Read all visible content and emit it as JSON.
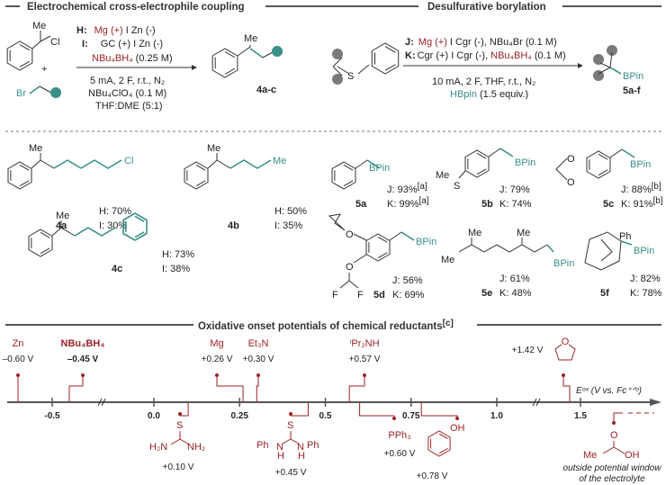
{
  "headers": {
    "coupling": "Electrochemical cross-electrophile coupling",
    "borylation": "Desulfurative borylation",
    "potentials": "Oxidative onset potentials of chemical reductants",
    "potentials_note": "[c]"
  },
  "coupling": {
    "substrate_me": "Me",
    "substrate_cl": "Cl",
    "plus": "+",
    "substrate_br": "Br",
    "cond_H_label": "H:",
    "cond_H_red": "Mg (+)",
    "cond_H_rest": "I Zn (-)",
    "cond_I_label": "I:",
    "cond_I_rest": "GC (+) I Zn (-)",
    "cond_additive": "NBu₄BH₄",
    "cond_additive_conc": "(0.25 M)",
    "cond_line1": "5 mA,  2 F, r.t., N₂",
    "cond_line2": "NBu₄ClO₄ (0.1 M)",
    "cond_line3": "THF:DME (5:1)",
    "product_me": "Me",
    "product_label": "4a-c"
  },
  "borylation": {
    "substrate_s": "S",
    "cond_J_label": "J:",
    "cond_J_red": "Mg (+)",
    "cond_J_rest": "I Cgr (-), NBu₄Br (0.1 M)",
    "cond_K_label": "K:",
    "cond_K_rest": "Cgr (+) I Cgr (-),",
    "cond_K_red": "NBu₄BH₄",
    "cond_K_conc": "(0.1 M)",
    "cond_line1": "10 mA, 2 F, THF, r.t., N₂",
    "cond_hbpin": "HBpin",
    "cond_hbpin_rest": "(1.5 equiv.)",
    "product_bpin": "BPin",
    "product_label": "5a-f"
  },
  "products": [
    {
      "id": "4a",
      "atoms": [
        "Me",
        "Cl"
      ],
      "y1": "H: 70%",
      "y2": "I: 30%"
    },
    {
      "id": "4b",
      "atoms": [
        "Me",
        "Me"
      ],
      "y1": "H: 50%",
      "y2": "I: 35%"
    },
    {
      "id": "4c",
      "atoms": [
        "Me"
      ],
      "y1": "H: 73%",
      "y2": "I: 38%"
    },
    {
      "id": "5a",
      "atoms": [
        "BPin"
      ],
      "y1": "J: 93%",
      "y1_note": "[a]",
      "y2": "K: 99%",
      "y2_note": "[a]"
    },
    {
      "id": "5b",
      "atoms": [
        "BPin",
        "Me",
        "S"
      ],
      "y1": "J: 79%",
      "y2": "K: 74%"
    },
    {
      "id": "5c",
      "atoms": [
        "BPin",
        "O",
        "O"
      ],
      "y1": "J: 88%",
      "y1_note": "[b]",
      "y2": "K: 91%",
      "y2_note": "[b]"
    },
    {
      "id": "5d",
      "atoms": [
        "BPin",
        "O",
        "O",
        "F",
        "F"
      ],
      "y1": "J: 56%",
      "y2": "K: 69%"
    },
    {
      "id": "5e",
      "atoms": [
        "Me",
        "Me",
        "Me",
        "BPin"
      ],
      "y1": "J: 61%",
      "y2": "K: 48%"
    },
    {
      "id": "5f",
      "atoms": [
        "Ph",
        "BPin"
      ],
      "y1": "J: 82%",
      "y2": "K: 78%"
    }
  ],
  "axis": {
    "label": "Eᵒˣ (V vs. Fc⁺ᐟᵒ)",
    "ticks": [
      "-0.5",
      "0.0",
      "0.25",
      "0.5",
      "0.75",
      "1.0",
      "1.5"
    ],
    "tick_values": [
      -0.5,
      0.0,
      0.25,
      0.5,
      0.75,
      1.0,
      1.5
    ],
    "breaks": [
      -0.3,
      1.2
    ]
  },
  "reductants": [
    {
      "name": "Zn",
      "potential": -0.6,
      "label": "–0.60 V",
      "side": "above"
    },
    {
      "name": "NBu₄BH₄",
      "potential": -0.45,
      "label": "–0.45 V",
      "side": "above",
      "bold": true
    },
    {
      "name": "S=C(NH₂)₂",
      "atoms": [
        "S",
        "H₂N",
        "NH₂"
      ],
      "potential": 0.1,
      "label": "+0.10 V",
      "side": "below"
    },
    {
      "name": "Mg",
      "potential": 0.26,
      "label": "+0.26 V",
      "side": "above"
    },
    {
      "name": "Et₃N",
      "potential": 0.3,
      "label": "+0.30 V",
      "side": "above"
    },
    {
      "name": "S=C(NHPh)₂",
      "atoms": [
        "S",
        "Ph",
        "N",
        "H",
        "N",
        "H",
        "Ph"
      ],
      "potential": 0.45,
      "label": "+0.45 V",
      "side": "below"
    },
    {
      "name": "ⁱPr₂NH",
      "potential": 0.57,
      "label": "+0.57 V",
      "side": "above"
    },
    {
      "name": "PPh₃",
      "potential": 0.6,
      "label": "+0.60 V",
      "side": "below"
    },
    {
      "name": "phenol",
      "atoms": [
        "OH"
      ],
      "potential": 0.78,
      "label": "+0.78 V",
      "side": "below"
    },
    {
      "name": "THF",
      "atoms": [
        "O"
      ],
      "potential": 1.42,
      "label": "+1.42 V",
      "side": "above"
    },
    {
      "name": "acetic acid",
      "atoms": [
        "O",
        "Me",
        "OH"
      ],
      "label": "outside potential window",
      "label2": "of the electrolyte",
      "side": "below"
    }
  ],
  "colors": {
    "red": "#9b2226",
    "teal": "#3a8f8a",
    "gray": "#7a7a7a",
    "axis": "#555555"
  }
}
